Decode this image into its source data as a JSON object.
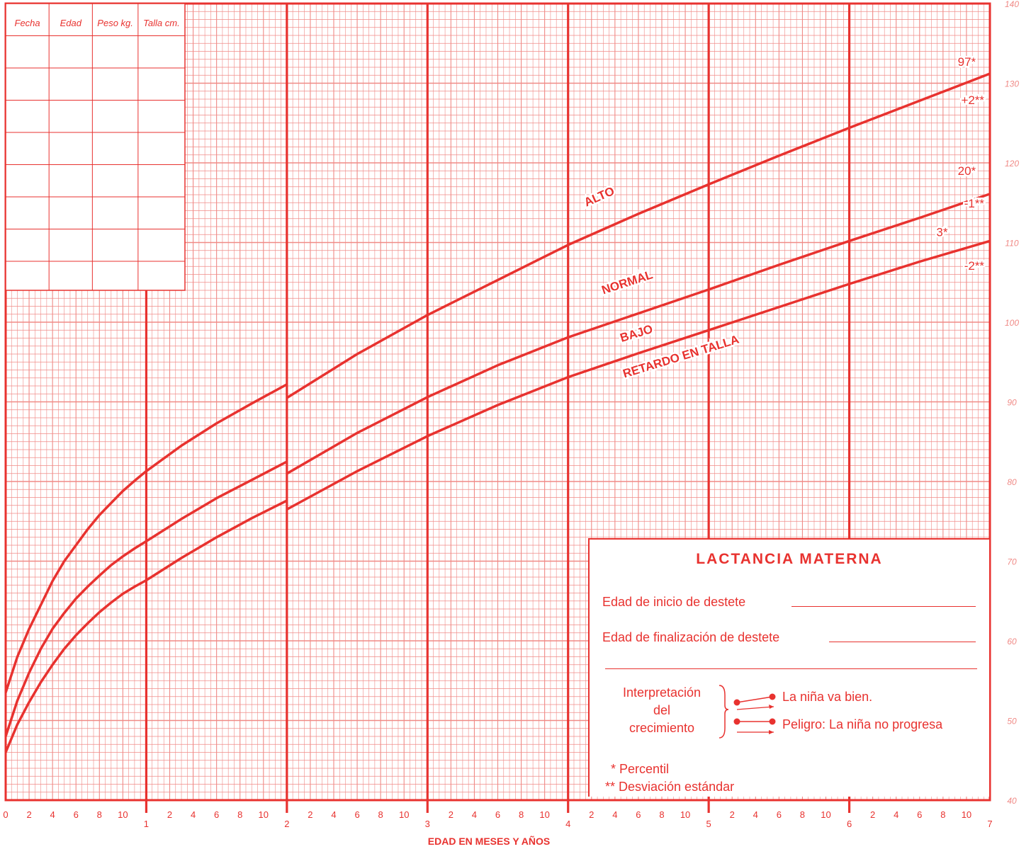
{
  "chart_data": {
    "type": "line",
    "xlabel": "EDAD EN MESES Y AÑOS",
    "ylabel": "",
    "xlim": [
      0,
      7
    ],
    "ylim": [
      40,
      140
    ],
    "x_ticks_years": [
      "0",
      "1",
      "2",
      "3",
      "4",
      "5",
      "6",
      "7"
    ],
    "x_ticks_months": [
      "2",
      "4",
      "6",
      "8",
      "10"
    ],
    "y_ticks": [
      40,
      50,
      60,
      70,
      80,
      90,
      100,
      110,
      120,
      130,
      140
    ],
    "grid": true,
    "series": [
      {
        "name": "97*",
        "segment": "0-2",
        "x": [
          0,
          0.083,
          0.167,
          0.25,
          0.333,
          0.417,
          0.5,
          0.583,
          0.667,
          0.75,
          0.833,
          0.917,
          1.0,
          1.25,
          1.5,
          1.75,
          2.0
        ],
        "y": [
          53.5,
          58,
          61.5,
          64.5,
          67.5,
          70,
          72,
          74,
          75.8,
          77.3,
          78.8,
          80.1,
          81.3,
          84.5,
          87.3,
          89.8,
          92.2
        ]
      },
      {
        "name": "97*",
        "segment": "2-7",
        "x": [
          2.0,
          2.5,
          3.0,
          3.5,
          4.0,
          4.5,
          5.0,
          5.5,
          6.0,
          6.5,
          7.0
        ],
        "y": [
          90.5,
          96,
          100.9,
          105.3,
          109.7,
          113.6,
          117.3,
          120.9,
          124.4,
          127.8,
          131.2
        ]
      },
      {
        "name": "20*",
        "segment": "0-2",
        "x": [
          0,
          0.083,
          0.167,
          0.25,
          0.333,
          0.417,
          0.5,
          0.583,
          0.667,
          0.75,
          0.833,
          0.917,
          1.0,
          1.25,
          1.5,
          1.75,
          2.0
        ],
        "y": [
          48,
          52.5,
          56,
          59,
          61.5,
          63.5,
          65.3,
          66.8,
          68.2,
          69.5,
          70.6,
          71.6,
          72.5,
          75.3,
          77.9,
          80.2,
          82.5
        ]
      },
      {
        "name": "20*",
        "segment": "2-7",
        "x": [
          2.0,
          2.5,
          3.0,
          3.5,
          4.0,
          4.5,
          5.0,
          5.5,
          6.0,
          6.5,
          7.0
        ],
        "y": [
          81,
          86.1,
          90.6,
          94.6,
          98.1,
          101.1,
          104.1,
          107.2,
          110.2,
          113.1,
          116.1
        ]
      },
      {
        "name": "3*",
        "segment": "0-2",
        "x": [
          0,
          0.083,
          0.167,
          0.25,
          0.333,
          0.417,
          0.5,
          0.583,
          0.667,
          0.75,
          0.833,
          0.917,
          1.0,
          1.25,
          1.5,
          1.75,
          2.0
        ],
        "y": [
          46,
          49.5,
          52.3,
          54.8,
          57,
          59,
          60.7,
          62.2,
          63.6,
          64.8,
          65.9,
          66.8,
          67.6,
          70.4,
          73,
          75.4,
          77.6
        ]
      },
      {
        "name": "3*",
        "segment": "2-7",
        "x": [
          2.0,
          2.5,
          3.0,
          3.5,
          4.0,
          4.5,
          5.0,
          5.5,
          6.0,
          6.5,
          7.0
        ],
        "y": [
          76.5,
          81.3,
          85.7,
          89.6,
          93.1,
          96.1,
          99,
          101.9,
          104.8,
          107.6,
          110.2
        ]
      }
    ],
    "zone_labels": [
      "ALTO",
      "NORMAL",
      "BAJO",
      "RETARDO EN TALLA"
    ],
    "curve_labels": [
      {
        "text": "97*",
        "note": "+2**"
      },
      {
        "text": "20*",
        "note": "-1**"
      },
      {
        "text": "3*",
        "note": "-2**"
      }
    ]
  },
  "record_table": {
    "headers": [
      "Fecha",
      "Edad",
      "Peso kg.",
      "Talla cm."
    ]
  },
  "legend": {
    "title": "LACTANCIA MATERNA",
    "field_start": "Edad de inicio de destete",
    "field_end": "Edad de finalización de destete",
    "interpretation": "Interpretación del crecimiento",
    "interpretation_lines": [
      "Interpretación",
      "del",
      "crecimiento"
    ],
    "result_good": "La niña va bien.",
    "result_bad": "Peligro: La niña no progresa",
    "note_percentile": "* Percentil",
    "note_sd": "** Desviación estándar"
  },
  "colors": {
    "accent": "#e8322f",
    "grid": "#f08a86",
    "background": "#ffffff"
  }
}
